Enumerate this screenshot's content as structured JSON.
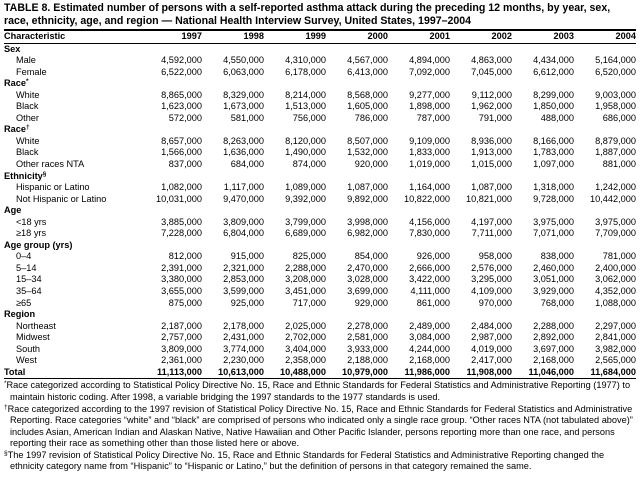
{
  "title": "TABLE 8. Estimated number of persons with a self-reported asthma attack during the preceding 12 months, by year, sex, race, ethnicity, age, and region — National Health Interview Survey, United States, 1997–2004",
  "table": {
    "header": [
      "Characteristic",
      "1997",
      "1998",
      "1999",
      "2000",
      "2001",
      "2002",
      "2003",
      "2004"
    ],
    "sections": [
      {
        "title": "Sex",
        "rows": [
          {
            "label": "Male",
            "values": [
              "4,592,000",
              "4,550,000",
              "4,310,000",
              "4,567,000",
              "4,894,000",
              "4,863,000",
              "4,434,000",
              "5,164,000"
            ]
          },
          {
            "label": "Female",
            "values": [
              "6,522,000",
              "6,063,000",
              "6,178,000",
              "6,413,000",
              "7,092,000",
              "7,045,000",
              "6,612,000",
              "6,520,000"
            ]
          }
        ]
      },
      {
        "title": "Race",
        "mark": "*",
        "rows": [
          {
            "label": "White",
            "values": [
              "8,865,000",
              "8,329,000",
              "8,214,000",
              "8,568,000",
              "9,277,000",
              "9,112,000",
              "8,299,000",
              "9,003,000"
            ]
          },
          {
            "label": "Black",
            "values": [
              "1,623,000",
              "1,673,000",
              "1,513,000",
              "1,605,000",
              "1,898,000",
              "1,962,000",
              "1,850,000",
              "1,958,000"
            ]
          },
          {
            "label": "Other",
            "values": [
              "572,000",
              "581,000",
              "756,000",
              "786,000",
              "787,000",
              "791,000",
              "488,000",
              "686,000"
            ]
          }
        ]
      },
      {
        "title": "Race",
        "mark": "†",
        "rows": [
          {
            "label": "White",
            "values": [
              "8,657,000",
              "8,263,000",
              "8,120,000",
              "8,507,000",
              "9,109,000",
              "8,936,000",
              "8,166,000",
              "8,879,000"
            ]
          },
          {
            "label": "Black",
            "values": [
              "1,566,000",
              "1,636,000",
              "1,490,000",
              "1,532,000",
              "1,833,000",
              "1,913,000",
              "1,783,000",
              "1,887,000"
            ]
          },
          {
            "label": "Other races NTA",
            "values": [
              "837,000",
              "684,000",
              "874,000",
              "920,000",
              "1,019,000",
              "1,015,000",
              "1,097,000",
              "881,000"
            ]
          }
        ]
      },
      {
        "title": "Ethnicity",
        "mark": "§",
        "rows": [
          {
            "label": "Hispanic or Latino",
            "values": [
              "1,082,000",
              "1,117,000",
              "1,089,000",
              "1,087,000",
              "1,164,000",
              "1,087,000",
              "1,318,000",
              "1,242,000"
            ]
          },
          {
            "label": "Not Hispanic or Latino",
            "values": [
              "10,031,000",
              "9,470,000",
              "9,392,000",
              "9,892,000",
              "10,822,000",
              "10,821,000",
              "9,728,000",
              "10,442,000"
            ]
          }
        ]
      },
      {
        "title": "Age",
        "rows": [
          {
            "label": "<18 yrs",
            "values": [
              "3,885,000",
              "3,809,000",
              "3,799,000",
              "3,998,000",
              "4,156,000",
              "4,197,000",
              "3,975,000",
              "3,975,000"
            ]
          },
          {
            "label": "≥18 yrs",
            "values": [
              "7,228,000",
              "6,804,000",
              "6,689,000",
              "6,982,000",
              "7,830,000",
              "7,711,000",
              "7,071,000",
              "7,709,000"
            ]
          }
        ]
      },
      {
        "title": "Age group (yrs)",
        "rows": [
          {
            "label": "0–4",
            "values": [
              "812,000",
              "915,000",
              "825,000",
              "854,000",
              "926,000",
              "958,000",
              "838,000",
              "781,000"
            ]
          },
          {
            "label": "5–14",
            "values": [
              "2,391,000",
              "2,321,000",
              "2,288,000",
              "2,470,000",
              "2,666,000",
              "2,576,000",
              "2,460,000",
              "2,400,000"
            ]
          },
          {
            "label": "15–34",
            "values": [
              "3,380,000",
              "2,853,000",
              "3,208,000",
              "3,028,000",
              "3,422,000",
              "3,295,000",
              "3,051,000",
              "3,062,000"
            ]
          },
          {
            "label": "35–64",
            "values": [
              "3,655,000",
              "3,599,000",
              "3,451,000",
              "3,699,000",
              "4,111,000",
              "4,109,000",
              "3,929,000",
              "4,352,000"
            ]
          },
          {
            "label": "≥65",
            "values": [
              "875,000",
              "925,000",
              "717,000",
              "929,000",
              "861,000",
              "970,000",
              "768,000",
              "1,088,000"
            ]
          }
        ]
      },
      {
        "title": "Region",
        "rows": [
          {
            "label": "Northeast",
            "values": [
              "2,187,000",
              "2,178,000",
              "2,025,000",
              "2,278,000",
              "2,489,000",
              "2,484,000",
              "2,288,000",
              "2,297,000"
            ]
          },
          {
            "label": "Midwest",
            "values": [
              "2,757,000",
              "2,431,000",
              "2,702,000",
              "2,581,000",
              "3,084,000",
              "2,987,000",
              "2,892,000",
              "2,841,000"
            ]
          },
          {
            "label": "South",
            "values": [
              "3,809,000",
              "3,774,000",
              "3,404,000",
              "3,933,000",
              "4,244,000",
              "4,019,000",
              "3,697,000",
              "3,982,000"
            ]
          },
          {
            "label": "West",
            "values": [
              "2,361,000",
              "2,230,000",
              "2,358,000",
              "2,188,000",
              "2,168,000",
              "2,417,000",
              "2,168,000",
              "2,565,000"
            ]
          }
        ]
      }
    ],
    "total": {
      "label": "Total",
      "values": [
        "11,113,000",
        "10,613,000",
        "10,488,000",
        "10,979,000",
        "11,986,000",
        "11,908,000",
        "11,046,000",
        "11,684,000"
      ]
    }
  },
  "footnotes": [
    {
      "mark": "*",
      "text": "Race categorized according to Statistical Policy Directive No. 15, Race and Ethnic Standards for Federal Statistics and Administrative Reporting (1977) to maintain historic coding. After 1998, a variable bridging the 1997 standards to the 1977 standards is used."
    },
    {
      "mark": "†",
      "text": "Race categorized according to the 1997 revision of Statistical Policy Directive No. 15, Race and Ethnic Standards for Federal Statistics and Administrative Reporting. Race categories “white” and “black” are comprised of persons who indicated only a single race group. “Other races NTA (not tabulated above)” includes Asian, American Indian and Alaskan Native, Native Hawaiian and Other Pacific Islander, persons reporting more than one race, and persons reporting their race as something other than those listed here or above."
    },
    {
      "mark": "§",
      "text": "The 1997 revision of Statistical Policy Directive No. 15, Race and Ethnic Standards for Federal Statistics and Administrative Reporting changed the ethnicity category name from “Hispanic” to “Hispanic or Latino,” but the definition of persons in that category remained the same."
    }
  ]
}
